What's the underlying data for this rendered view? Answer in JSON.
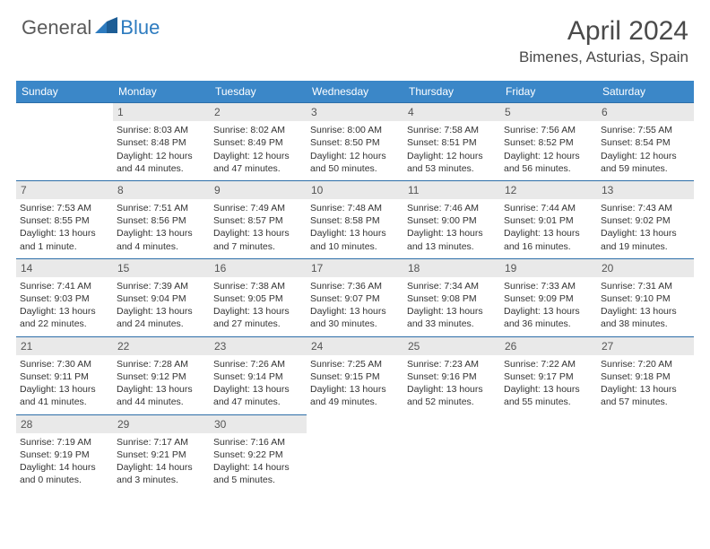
{
  "logo": {
    "general": "General",
    "blue": "Blue"
  },
  "title": "April 2024",
  "location": "Bimenes, Asturias, Spain",
  "colors": {
    "header_bg": "#3b87c8",
    "rule": "#2d6ea8",
    "daynum_bg": "#e9e9e9",
    "text": "#333333",
    "title_text": "#4a4a4a"
  },
  "day_headers": [
    "Sunday",
    "Monday",
    "Tuesday",
    "Wednesday",
    "Thursday",
    "Friday",
    "Saturday"
  ],
  "weeks": [
    [
      null,
      {
        "n": "1",
        "sr": "Sunrise: 8:03 AM",
        "ss": "Sunset: 8:48 PM",
        "dl": "Daylight: 12 hours and 44 minutes."
      },
      {
        "n": "2",
        "sr": "Sunrise: 8:02 AM",
        "ss": "Sunset: 8:49 PM",
        "dl": "Daylight: 12 hours and 47 minutes."
      },
      {
        "n": "3",
        "sr": "Sunrise: 8:00 AM",
        "ss": "Sunset: 8:50 PM",
        "dl": "Daylight: 12 hours and 50 minutes."
      },
      {
        "n": "4",
        "sr": "Sunrise: 7:58 AM",
        "ss": "Sunset: 8:51 PM",
        "dl": "Daylight: 12 hours and 53 minutes."
      },
      {
        "n": "5",
        "sr": "Sunrise: 7:56 AM",
        "ss": "Sunset: 8:52 PM",
        "dl": "Daylight: 12 hours and 56 minutes."
      },
      {
        "n": "6",
        "sr": "Sunrise: 7:55 AM",
        "ss": "Sunset: 8:54 PM",
        "dl": "Daylight: 12 hours and 59 minutes."
      }
    ],
    [
      {
        "n": "7",
        "sr": "Sunrise: 7:53 AM",
        "ss": "Sunset: 8:55 PM",
        "dl": "Daylight: 13 hours and 1 minute."
      },
      {
        "n": "8",
        "sr": "Sunrise: 7:51 AM",
        "ss": "Sunset: 8:56 PM",
        "dl": "Daylight: 13 hours and 4 minutes."
      },
      {
        "n": "9",
        "sr": "Sunrise: 7:49 AM",
        "ss": "Sunset: 8:57 PM",
        "dl": "Daylight: 13 hours and 7 minutes."
      },
      {
        "n": "10",
        "sr": "Sunrise: 7:48 AM",
        "ss": "Sunset: 8:58 PM",
        "dl": "Daylight: 13 hours and 10 minutes."
      },
      {
        "n": "11",
        "sr": "Sunrise: 7:46 AM",
        "ss": "Sunset: 9:00 PM",
        "dl": "Daylight: 13 hours and 13 minutes."
      },
      {
        "n": "12",
        "sr": "Sunrise: 7:44 AM",
        "ss": "Sunset: 9:01 PM",
        "dl": "Daylight: 13 hours and 16 minutes."
      },
      {
        "n": "13",
        "sr": "Sunrise: 7:43 AM",
        "ss": "Sunset: 9:02 PM",
        "dl": "Daylight: 13 hours and 19 minutes."
      }
    ],
    [
      {
        "n": "14",
        "sr": "Sunrise: 7:41 AM",
        "ss": "Sunset: 9:03 PM",
        "dl": "Daylight: 13 hours and 22 minutes."
      },
      {
        "n": "15",
        "sr": "Sunrise: 7:39 AM",
        "ss": "Sunset: 9:04 PM",
        "dl": "Daylight: 13 hours and 24 minutes."
      },
      {
        "n": "16",
        "sr": "Sunrise: 7:38 AM",
        "ss": "Sunset: 9:05 PM",
        "dl": "Daylight: 13 hours and 27 minutes."
      },
      {
        "n": "17",
        "sr": "Sunrise: 7:36 AM",
        "ss": "Sunset: 9:07 PM",
        "dl": "Daylight: 13 hours and 30 minutes."
      },
      {
        "n": "18",
        "sr": "Sunrise: 7:34 AM",
        "ss": "Sunset: 9:08 PM",
        "dl": "Daylight: 13 hours and 33 minutes."
      },
      {
        "n": "19",
        "sr": "Sunrise: 7:33 AM",
        "ss": "Sunset: 9:09 PM",
        "dl": "Daylight: 13 hours and 36 minutes."
      },
      {
        "n": "20",
        "sr": "Sunrise: 7:31 AM",
        "ss": "Sunset: 9:10 PM",
        "dl": "Daylight: 13 hours and 38 minutes."
      }
    ],
    [
      {
        "n": "21",
        "sr": "Sunrise: 7:30 AM",
        "ss": "Sunset: 9:11 PM",
        "dl": "Daylight: 13 hours and 41 minutes."
      },
      {
        "n": "22",
        "sr": "Sunrise: 7:28 AM",
        "ss": "Sunset: 9:12 PM",
        "dl": "Daylight: 13 hours and 44 minutes."
      },
      {
        "n": "23",
        "sr": "Sunrise: 7:26 AM",
        "ss": "Sunset: 9:14 PM",
        "dl": "Daylight: 13 hours and 47 minutes."
      },
      {
        "n": "24",
        "sr": "Sunrise: 7:25 AM",
        "ss": "Sunset: 9:15 PM",
        "dl": "Daylight: 13 hours and 49 minutes."
      },
      {
        "n": "25",
        "sr": "Sunrise: 7:23 AM",
        "ss": "Sunset: 9:16 PM",
        "dl": "Daylight: 13 hours and 52 minutes."
      },
      {
        "n": "26",
        "sr": "Sunrise: 7:22 AM",
        "ss": "Sunset: 9:17 PM",
        "dl": "Daylight: 13 hours and 55 minutes."
      },
      {
        "n": "27",
        "sr": "Sunrise: 7:20 AM",
        "ss": "Sunset: 9:18 PM",
        "dl": "Daylight: 13 hours and 57 minutes."
      }
    ],
    [
      {
        "n": "28",
        "sr": "Sunrise: 7:19 AM",
        "ss": "Sunset: 9:19 PM",
        "dl": "Daylight: 14 hours and 0 minutes."
      },
      {
        "n": "29",
        "sr": "Sunrise: 7:17 AM",
        "ss": "Sunset: 9:21 PM",
        "dl": "Daylight: 14 hours and 3 minutes."
      },
      {
        "n": "30",
        "sr": "Sunrise: 7:16 AM",
        "ss": "Sunset: 9:22 PM",
        "dl": "Daylight: 14 hours and 5 minutes."
      },
      null,
      null,
      null,
      null
    ]
  ]
}
